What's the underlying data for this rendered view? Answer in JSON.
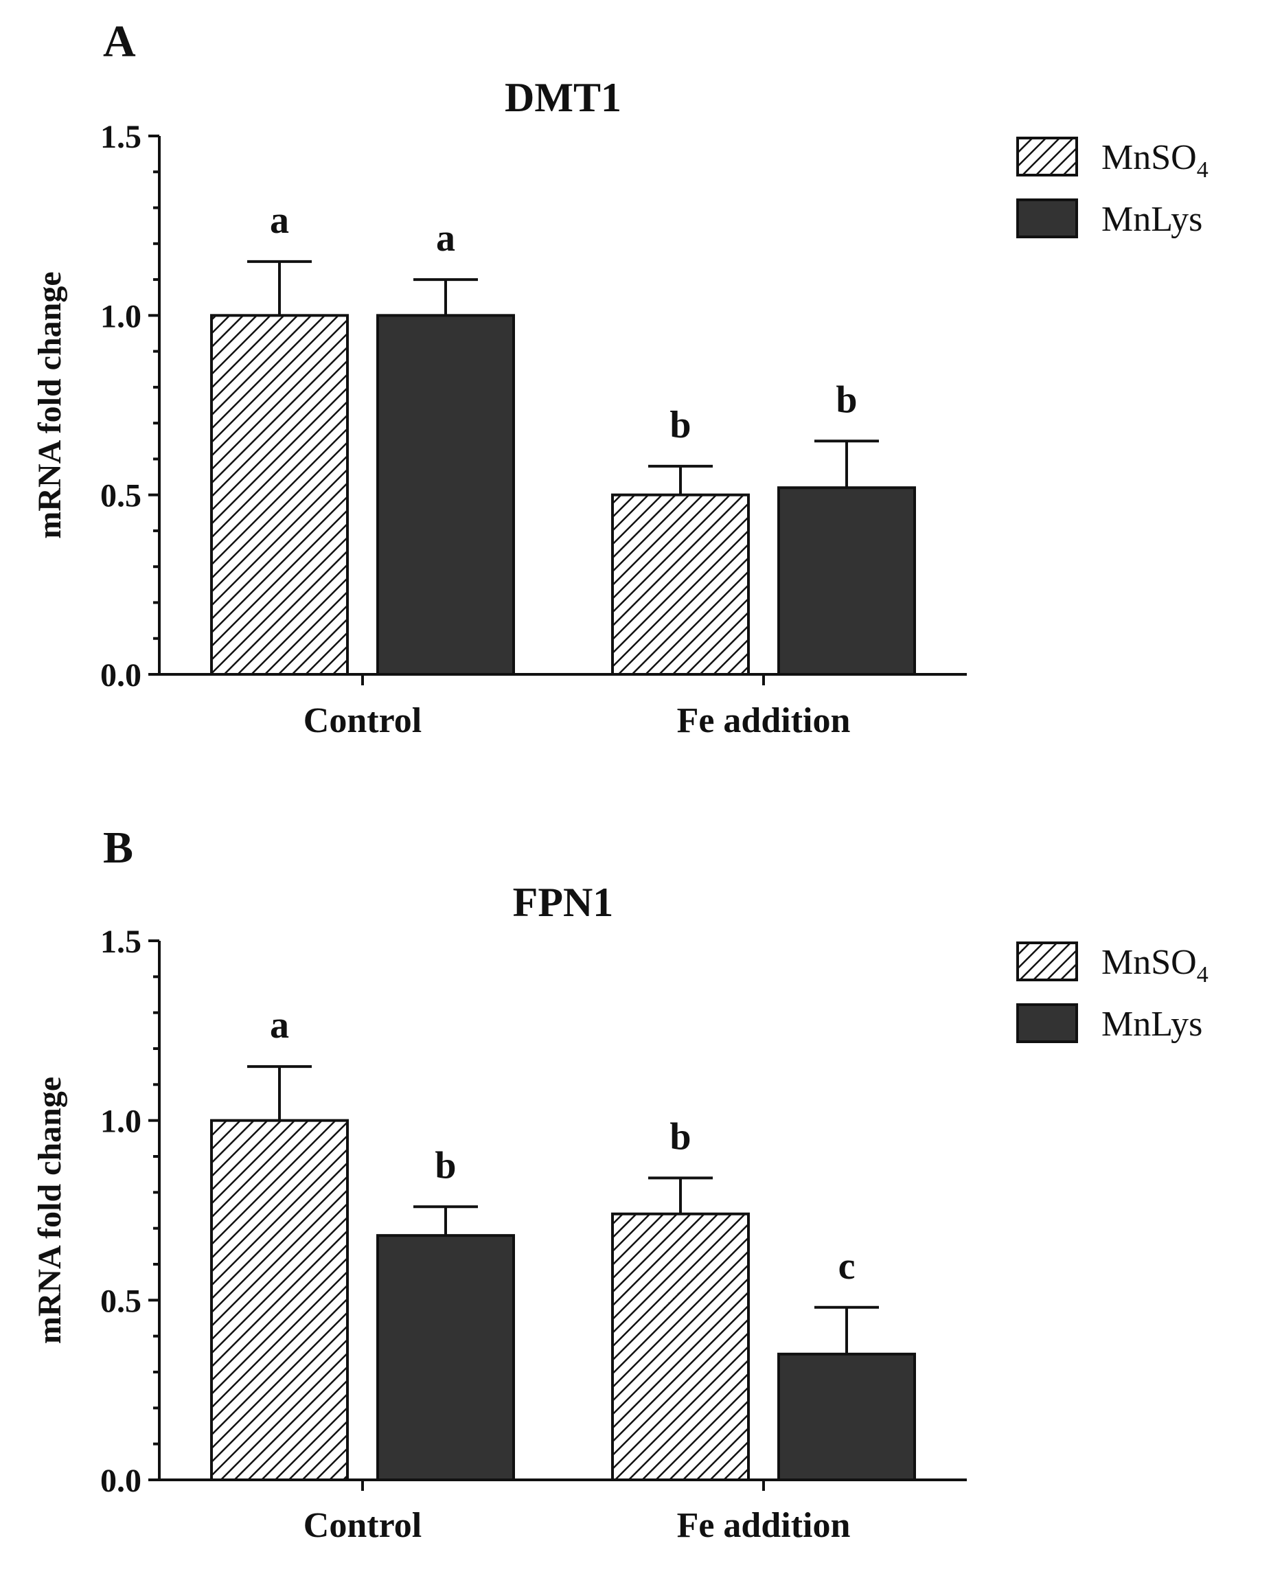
{
  "colors": {
    "ink": "#111111",
    "dark_bar": "#333333",
    "hatch_bg": "#ffffff"
  },
  "chart_data": [
    {
      "panel_label": "A",
      "type": "bar",
      "title": "DMT1",
      "ylabel": "mRNA fold change",
      "xlabel": "",
      "ylim": [
        0,
        1.5
      ],
      "yticks": [
        "0.0",
        "0.5",
        "1.0",
        "1.5"
      ],
      "yticks_values": [
        0,
        0.5,
        1.0,
        1.5
      ],
      "categories": [
        "Control",
        "Fe addition"
      ],
      "legend": {
        "position": "top-right",
        "entries": [
          "MnSO",
          "MnLys"
        ],
        "subscripts": [
          "4",
          ""
        ]
      },
      "series": [
        {
          "name": "MnSO4",
          "fill": "hatched",
          "values": [
            1.0,
            0.5
          ],
          "errors": [
            0.15,
            0.08
          ],
          "letters": [
            "a",
            "b"
          ]
        },
        {
          "name": "MnLys",
          "fill": "dark",
          "values": [
            1.0,
            0.52
          ],
          "errors": [
            0.1,
            0.13
          ],
          "letters": [
            "a",
            "b"
          ]
        }
      ]
    },
    {
      "panel_label": "B",
      "type": "bar",
      "title": "FPN1",
      "ylabel": "mRNA fold change",
      "xlabel": "",
      "ylim": [
        0,
        1.5
      ],
      "yticks": [
        "0.0",
        "0.5",
        "1.0",
        "1.5"
      ],
      "yticks_values": [
        0,
        0.5,
        1.0,
        1.5
      ],
      "categories": [
        "Control",
        "Fe addition"
      ],
      "legend": {
        "position": "top-right",
        "entries": [
          "MnSO",
          "MnLys"
        ],
        "subscripts": [
          "4",
          ""
        ]
      },
      "series": [
        {
          "name": "MnSO4",
          "fill": "hatched",
          "values": [
            1.0,
            0.74
          ],
          "errors": [
            0.15,
            0.1
          ],
          "letters": [
            "a",
            "b"
          ]
        },
        {
          "name": "MnLys",
          "fill": "dark",
          "values": [
            0.68,
            0.35
          ],
          "errors": [
            0.08,
            0.13
          ],
          "letters": [
            "b",
            "c"
          ]
        }
      ]
    }
  ]
}
